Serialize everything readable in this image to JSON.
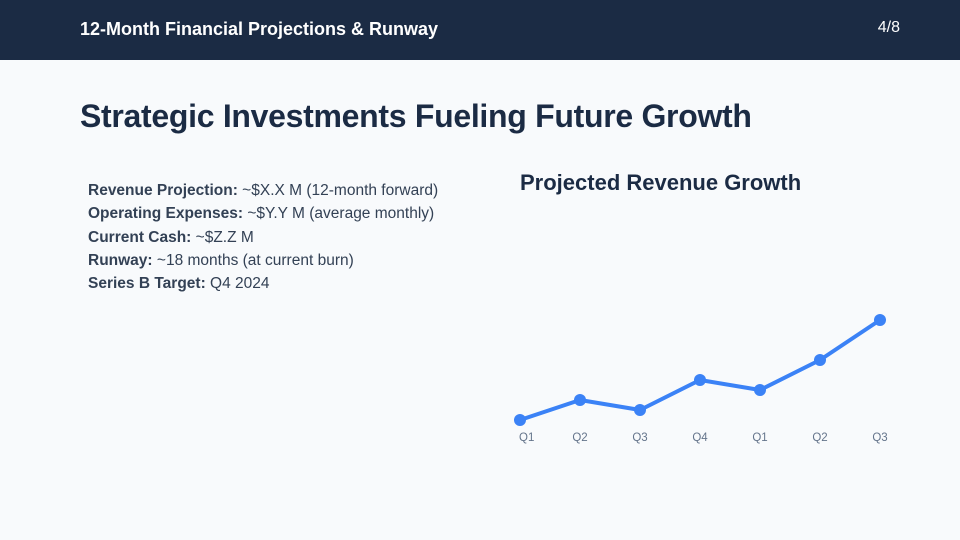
{
  "header": {
    "title": "12-Month Financial Projections & Runway",
    "page_indicator": "4/8"
  },
  "slide": {
    "heading": "Strategic Investments Fueling Future Growth",
    "facts": [
      {
        "label": "Revenue Projection:",
        "value": " ~$X.X M (12-month forward)"
      },
      {
        "label": "Operating Expenses:",
        "value": " ~$Y.Y M (average monthly)"
      },
      {
        "label": "Current Cash:",
        "value": " ~$Z.Z M"
      },
      {
        "label": "Runway:",
        "value": " ~18 months (at current burn)"
      },
      {
        "label": "Series B Target:",
        "value": " Q4 2024"
      }
    ]
  },
  "chart": {
    "title": "Projected Revenue Growth",
    "line_color": "#3b82f6"
  },
  "chart_data": {
    "type": "line",
    "title": "Projected Revenue Growth",
    "categories": [
      "Q1",
      "Q2",
      "Q3",
      "Q4",
      "Q1",
      "Q2",
      "Q3"
    ],
    "values": [
      0,
      20,
      10,
      40,
      30,
      60,
      100
    ],
    "xlabel": "",
    "ylabel": "",
    "grid": false,
    "legend": null,
    "note": "No y-axis shown; values are relative heights estimated from pixel positions"
  }
}
